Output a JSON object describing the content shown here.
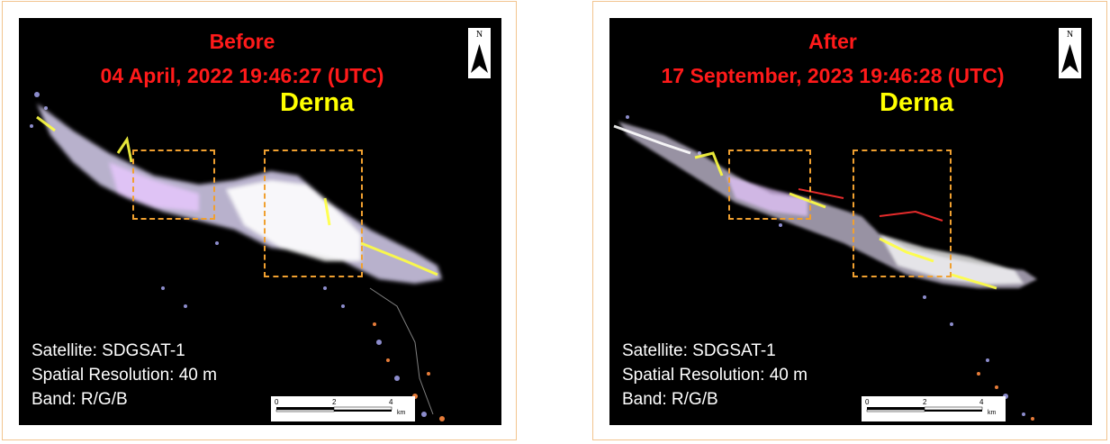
{
  "panels": [
    {
      "title": "Before",
      "datetime": "04 April, 2022 19:46:27 (UTC)",
      "place": "Derna",
      "satellite": "Satellite: SDGSAT-1",
      "resolution": "Spatial Resolution: 40 m",
      "band": "Band: R/G/B"
    },
    {
      "title": "After",
      "datetime": "17 September, 2023 19:46:28 (UTC)",
      "place": "Derna",
      "satellite": "Satellite: SDGSAT-1",
      "resolution": "Spatial Resolution: 40 m",
      "band": "Band: R/G/B"
    }
  ],
  "north_label": "N",
  "scale": {
    "ticks": [
      "0",
      "2",
      "4"
    ],
    "unit": "km"
  },
  "colors": {
    "title": "#ff1a1a",
    "place": "#ffff00",
    "box": "#f0a030",
    "frame": "#f2c48e"
  }
}
